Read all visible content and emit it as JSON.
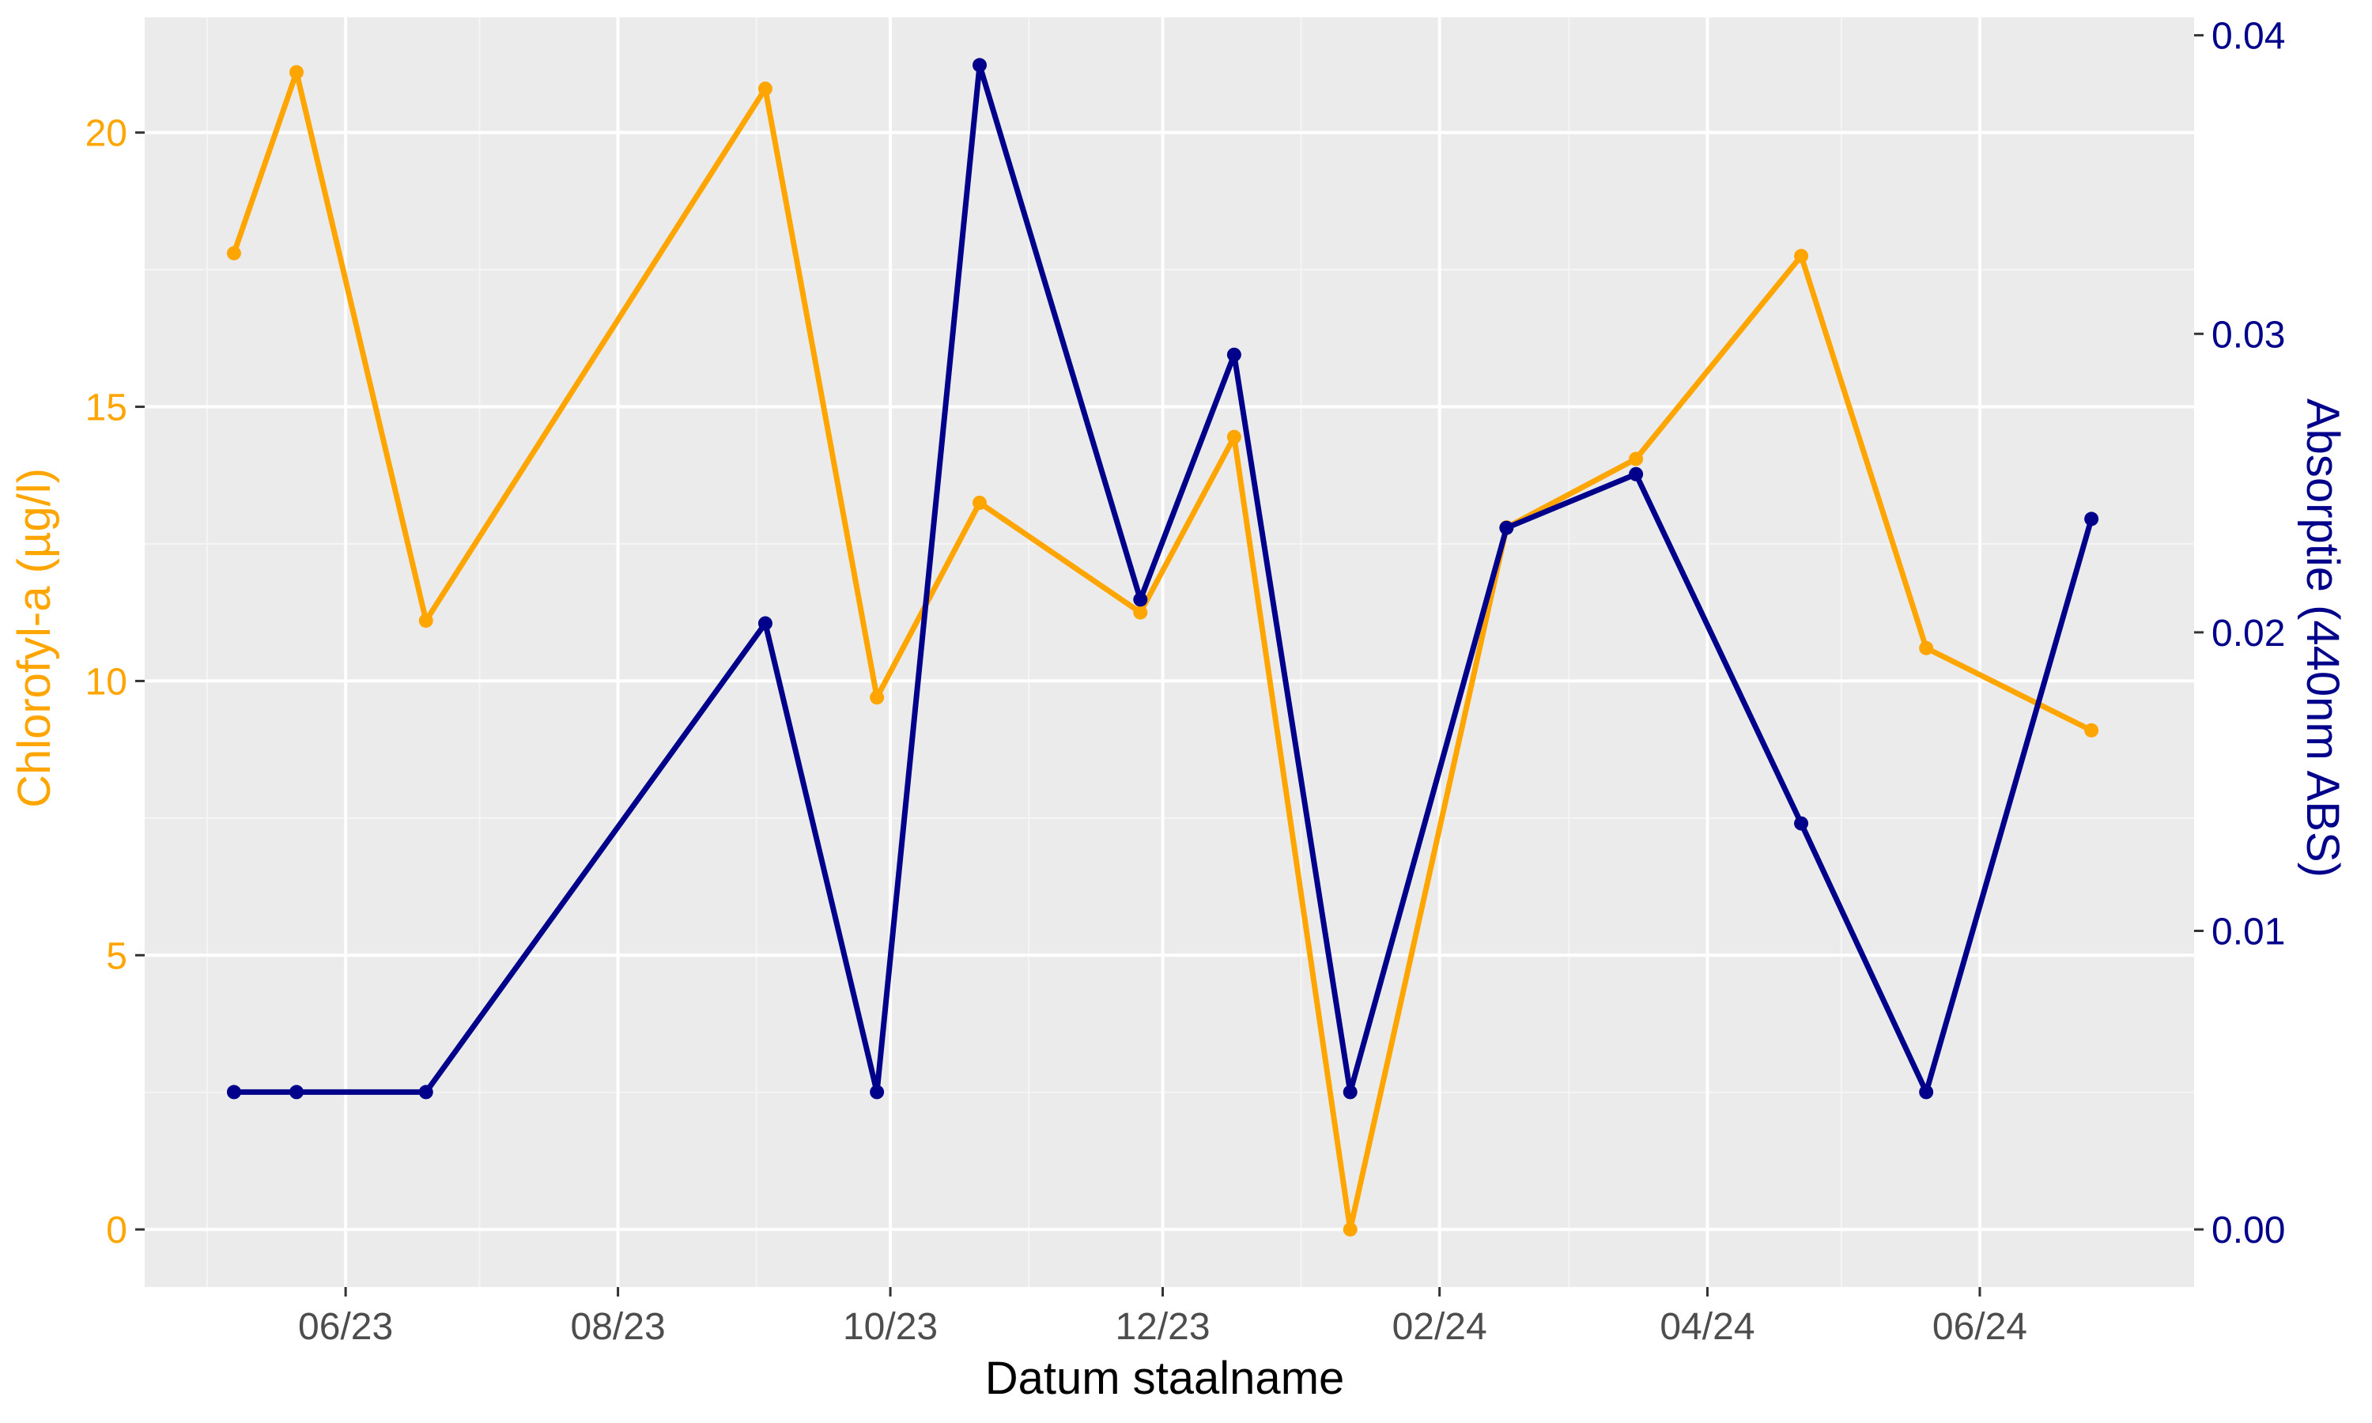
{
  "colors": {
    "panel_bg": "#ebebeb",
    "grid_major": "#ffffff",
    "grid_minor": "#f5f5f5",
    "chlorofyl": "#ffa500",
    "absorptie": "#00008b",
    "x_tick_text": "#4d4d4d"
  },
  "chart_data": {
    "type": "line",
    "title": "",
    "xlabel": "Datum staalname",
    "ylabel_left": "Chlorofyl-a (µg/l)",
    "ylabel_right": "Absorptie (440nm ABS)",
    "grid": true,
    "legend": "none",
    "xlim": [
      "2023-04-17",
      "2024-07-19"
    ],
    "ylim_left": [
      -1.05,
      22.1
    ],
    "ylim_right": [
      -0.00193,
      0.0406
    ],
    "x_ticks": [
      {
        "date": "2023-06-01",
        "label": "06/23"
      },
      {
        "date": "2023-08-01",
        "label": "08/23"
      },
      {
        "date": "2023-10-01",
        "label": "10/23"
      },
      {
        "date": "2023-12-01",
        "label": "12/23"
      },
      {
        "date": "2024-02-01",
        "label": "02/24"
      },
      {
        "date": "2024-04-01",
        "label": "04/24"
      },
      {
        "date": "2024-06-01",
        "label": "06/24"
      }
    ],
    "x_minor_ticks": [
      "2023-05-01",
      "2023-07-01",
      "2023-09-01",
      "2023-11-01",
      "2024-01-01",
      "2024-03-01",
      "2024-05-01"
    ],
    "y_left_ticks": [
      0,
      5,
      10,
      15,
      20
    ],
    "y_left_tick_labels": [
      "0",
      "5",
      "10",
      "15",
      "20"
    ],
    "y_left_minor_ticks": [
      2.5,
      7.5,
      12.5,
      17.5
    ],
    "y_right_ticks": [
      0,
      0.01,
      0.02,
      0.03,
      0.04
    ],
    "y_right_tick_labels": [
      "0.00",
      "0.01",
      "0.02",
      "0.03",
      "0.04"
    ],
    "y_right_minor_ticks": [
      0.005,
      0.015,
      0.025,
      0.035
    ],
    "x": [
      "2023-05-07",
      "2023-05-21",
      "2023-06-19",
      "2023-09-03",
      "2023-09-28",
      "2023-10-21",
      "2023-11-26",
      "2023-12-17",
      "2024-01-12",
      "2024-02-16",
      "2024-03-16",
      "2024-04-22",
      "2024-05-20",
      "2024-06-26"
    ],
    "series": [
      {
        "axis": "left",
        "values": [
          17.8,
          21.1,
          11.1,
          20.8,
          9.7,
          13.25,
          11.25,
          14.45,
          0.0,
          12.8,
          14.05,
          17.75,
          10.6,
          9.1
        ]
      },
      {
        "axis": "right",
        "values": [
          0.0046,
          0.0046,
          0.0046,
          0.0203,
          0.0046,
          0.039,
          0.0211,
          0.0293,
          0.0046,
          0.0235,
          0.0253,
          0.0136,
          0.0046,
          0.0238
        ]
      }
    ]
  }
}
